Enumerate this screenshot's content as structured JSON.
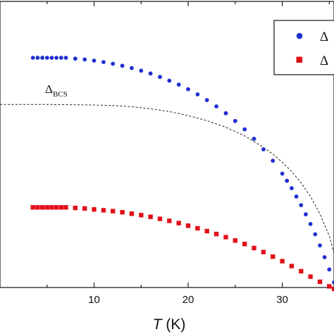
{
  "chart_data": {
    "type": "scatter",
    "xlabel_var": "T",
    "xlabel_unit": "(K)",
    "ylabel": "",
    "x_ticks": [
      10,
      20,
      30
    ],
    "xlim": [
      0,
      35.5
    ],
    "ylim": [
      0,
      1
    ],
    "grid": false,
    "legend_position": "top-right",
    "colors": {
      "blue": "#1f2fd0",
      "red": "#e0101a",
      "curve": "#222222"
    },
    "series": [
      {
        "marker": "circle",
        "color": "#1f2fd0",
        "legend_label": "Δ",
        "x": [
          3.5,
          4,
          4.5,
          5,
          5.5,
          6,
          6.5,
          7,
          8,
          9,
          10,
          11,
          12,
          13,
          14,
          15,
          16,
          17,
          18,
          19,
          20,
          21,
          22,
          23,
          24,
          25,
          26,
          27,
          28,
          29,
          30,
          30.5,
          31,
          31.5,
          32,
          32.5,
          33,
          33.5,
          34,
          34.5,
          35,
          35.5
        ],
        "y": [
          0.803,
          0.803,
          0.803,
          0.803,
          0.803,
          0.803,
          0.803,
          0.803,
          0.8,
          0.797,
          0.793,
          0.788,
          0.782,
          0.775,
          0.767,
          0.758,
          0.748,
          0.736,
          0.723,
          0.709,
          0.693,
          0.675,
          0.655,
          0.633,
          0.609,
          0.582,
          0.553,
          0.52,
          0.483,
          0.443,
          0.398,
          0.373,
          0.347,
          0.318,
          0.288,
          0.256,
          0.222,
          0.186,
          0.147,
          0.106,
          0.063,
          0.018
        ]
      },
      {
        "marker": "square",
        "color": "#e0101a",
        "legend_label": "Δ",
        "x": [
          3.5,
          4,
          4.5,
          5,
          5.5,
          6,
          6.5,
          7,
          8,
          9,
          10,
          11,
          12,
          13,
          14,
          15,
          16,
          17,
          18,
          19,
          20,
          21,
          22,
          23,
          24,
          25,
          26,
          27,
          28,
          29,
          30,
          31,
          32,
          33,
          34,
          35,
          35.5
        ],
        "y": [
          0.28,
          0.28,
          0.28,
          0.28,
          0.28,
          0.28,
          0.28,
          0.28,
          0.278,
          0.276,
          0.273,
          0.27,
          0.267,
          0.263,
          0.258,
          0.253,
          0.247,
          0.24,
          0.233,
          0.225,
          0.216,
          0.207,
          0.197,
          0.187,
          0.176,
          0.164,
          0.152,
          0.138,
          0.124,
          0.108,
          0.092,
          0.075,
          0.057,
          0.038,
          0.02,
          0.004,
          -0.005
        ]
      }
    ],
    "curve": {
      "label": "Δ",
      "label_sub": "BCS",
      "style": "dashed",
      "x": [
        0,
        5,
        10,
        12,
        14,
        16,
        18,
        20,
        22,
        24,
        26,
        28,
        29,
        30,
        31,
        32,
        33,
        34,
        35,
        35.5
      ],
      "y": [
        0.64,
        0.64,
        0.638,
        0.636,
        0.632,
        0.625,
        0.615,
        0.601,
        0.583,
        0.56,
        0.53,
        0.49,
        0.466,
        0.438,
        0.405,
        0.366,
        0.318,
        0.258,
        0.18,
        0.12
      ]
    }
  }
}
